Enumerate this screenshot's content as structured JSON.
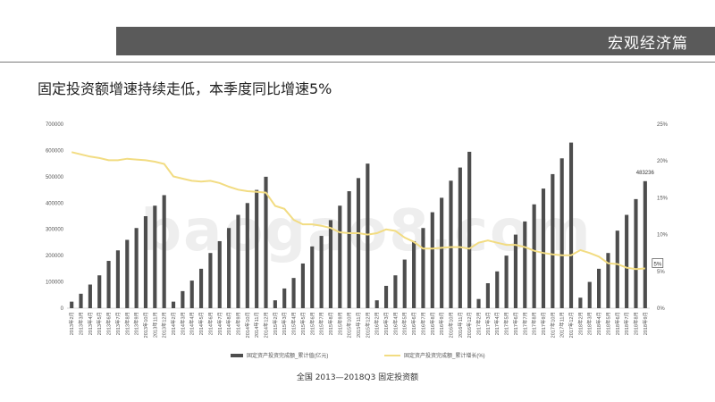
{
  "header": {
    "section_title": "宏观经济篇"
  },
  "headline": "固定投资额增速持续走低，本季度同比增速5%",
  "footnote": "全国  2013—2018Q3  固定投资额",
  "watermark": "baogao8.com",
  "colors": {
    "bar": "#4d4d4d",
    "line": "#f2dc82",
    "header": "#5a5a5a",
    "axis": "#d9d9d9"
  },
  "chart_data": {
    "type": "bar",
    "categories": [
      "2013年2月",
      "2013年3月",
      "2013年4月",
      "2013年5月",
      "2013年6月",
      "2013年7月",
      "2013年8月",
      "2013年9月",
      "2013年10月",
      "2013年11月",
      "2013年12月",
      "2014年2月",
      "2014年3月",
      "2014年4月",
      "2014年5月",
      "2014年6月",
      "2014年7月",
      "2014年8月",
      "2014年9月",
      "2014年10月",
      "2014年11月",
      "2014年12月",
      "2015年2月",
      "2015年3月",
      "2015年4月",
      "2015年5月",
      "2015年6月",
      "2015年7月",
      "2015年8月",
      "2015年9月",
      "2015年10月",
      "2015年11月",
      "2015年12月",
      "2016年2月",
      "2016年3月",
      "2016年4月",
      "2016年5月",
      "2016年6月",
      "2016年7月",
      "2016年8月",
      "2016年9月",
      "2016年10月",
      "2016年11月",
      "2016年12月",
      "2017年2月",
      "2017年3月",
      "2017年4月",
      "2017年5月",
      "2017年6月",
      "2017年7月",
      "2017年8月",
      "2017年9月",
      "2017年10月",
      "2017年11月",
      "2017年12月",
      "2018年2月",
      "2018年3月",
      "2018年4月",
      "2018年5月",
      "2018年6月",
      "2018年7月",
      "2018年8月",
      "2018年9月"
    ],
    "series": [
      {
        "name": "固定资产投资完成额_累计值(亿元)",
        "axis": "left",
        "kind": "bar",
        "values": [
          25000,
          55000,
          90000,
          125000,
          180000,
          220000,
          260000,
          305000,
          350000,
          390000,
          430000,
          25000,
          65000,
          105000,
          150000,
          210000,
          255000,
          305000,
          355000,
          400000,
          450000,
          500000,
          30000,
          75000,
          115000,
          170000,
          235000,
          275000,
          335000,
          390000,
          445000,
          495000,
          550000,
          30000,
          85000,
          125000,
          185000,
          255000,
          305000,
          365000,
          420000,
          485000,
          535000,
          595000,
          35000,
          95000,
          140000,
          200000,
          280000,
          330000,
          395000,
          455000,
          510000,
          570000,
          630000,
          40000,
          100000,
          150000,
          210000,
          295000,
          355000,
          415000,
          483236
        ]
      },
      {
        "name": "固定资产投资完成额_累计增长(%)",
        "axis": "right",
        "kind": "line",
        "values": [
          21.2,
          20.9,
          20.6,
          20.4,
          20.1,
          20.1,
          20.3,
          20.2,
          20.1,
          19.9,
          19.6,
          17.9,
          17.6,
          17.3,
          17.2,
          17.3,
          17.0,
          16.5,
          16.1,
          15.9,
          15.8,
          15.7,
          13.9,
          13.5,
          12.0,
          11.4,
          11.4,
          11.2,
          10.9,
          10.3,
          10.2,
          10.2,
          10.0,
          10.2,
          10.7,
          10.5,
          9.6,
          9.0,
          8.1,
          8.1,
          8.2,
          8.3,
          8.3,
          8.1,
          8.9,
          9.2,
          8.9,
          8.6,
          8.6,
          8.3,
          7.8,
          7.5,
          7.3,
          7.2,
          7.2,
          7.9,
          7.5,
          7.0,
          6.1,
          6.0,
          5.5,
          5.3,
          5.4
        ]
      }
    ],
    "y_left": {
      "lim": [
        0,
        700000
      ],
      "ticks": [
        "0",
        "100000",
        "200000",
        "300000",
        "400000",
        "500000",
        "600000",
        "700000"
      ]
    },
    "y_right": {
      "lim": [
        0,
        25
      ],
      "ticks": [
        "0%",
        "5%",
        "10%",
        "15%",
        "20%",
        "25%"
      ]
    },
    "annotations": {
      "last_bar_label": "483236",
      "last_line_label": "5%"
    },
    "grid": false,
    "legend": "bottom-center"
  }
}
